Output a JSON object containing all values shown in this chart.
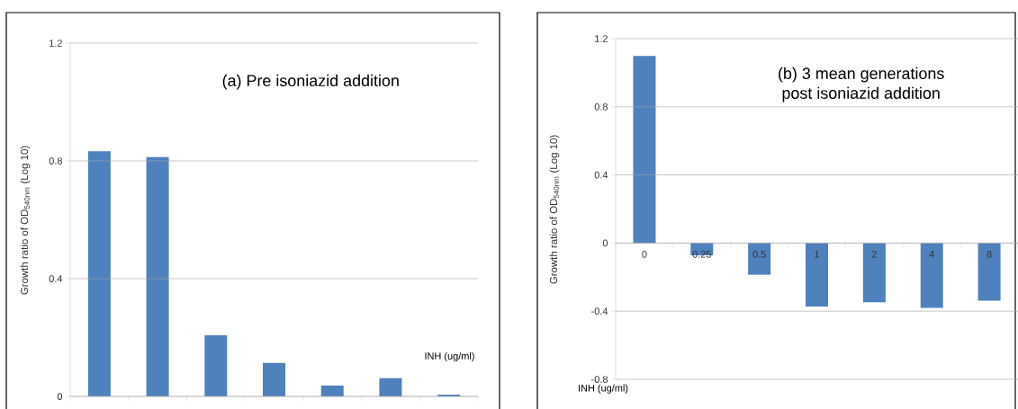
{
  "chart_data": [
    {
      "type": "bar",
      "title": "(a) Pre isoniazid addition",
      "ylabel": "Growth ratio of OD$_{540nm}$ (Log 10)",
      "xlabel": "INH (ug/ml)",
      "categories": [
        null,
        null,
        null,
        null,
        null,
        null,
        null
      ],
      "values": [
        0.833,
        0.813,
        0.208,
        0.114,
        0.037,
        0.062,
        0.006
      ],
      "color": "#4f81bd",
      "ylim": [
        0,
        1.2
      ],
      "yticks": [
        0,
        0.4,
        0.8,
        1.2
      ],
      "grid": "y"
    },
    {
      "type": "bar",
      "title": "(b) 3 mean generations\npost isoniazid addition",
      "ylabel": "Growth ratio of OD$_{540nm}$ (Log 10)",
      "xlabel": "INH (ug/ml)",
      "categories": [
        "0",
        "0.25",
        "0.5",
        "1",
        "2",
        "4",
        "8"
      ],
      "values": [
        1.099,
        -0.072,
        -0.186,
        -0.372,
        -0.347,
        -0.381,
        -0.338
      ],
      "color": "#4f81bd",
      "ylim": [
        -0.8,
        1.2
      ],
      "yticks": [
        -0.8,
        -0.4,
        0,
        0.4,
        0.8,
        1.2
      ],
      "grid": "y"
    }
  ]
}
